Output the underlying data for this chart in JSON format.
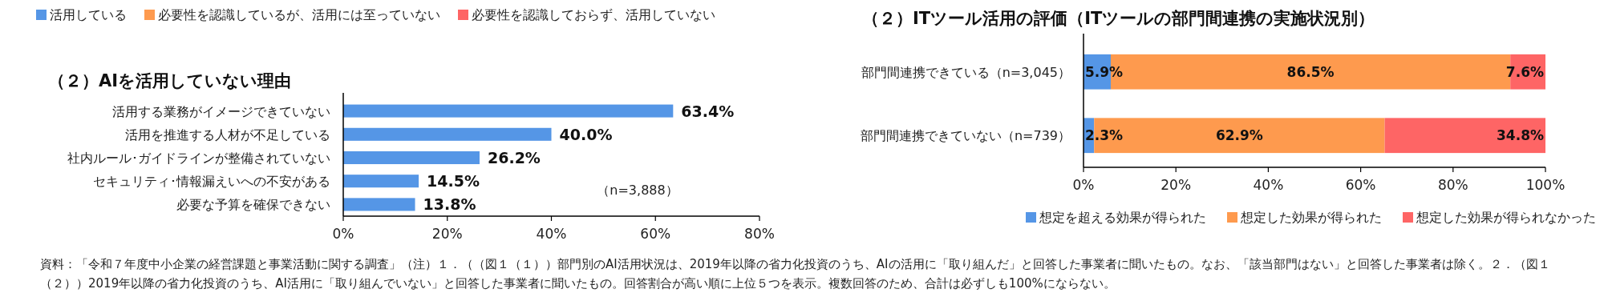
{
  "chart_data": [
    {
      "type": "other",
      "legend": "top",
      "series": [
        {
          "name": "活用している",
          "color": "#5596e6"
        },
        {
          "name": "必要性を認識しているが、活用には至っていない",
          "color": "#fe9a4e"
        },
        {
          "name": "必要性を認識しておらず、活用していない",
          "color": "#fe6565"
        }
      ],
      "annotations": [
        "資料：「令和７年度中小企業の経営課題と事業活動に関する調査」（注）１．（（図１（１））部門別のAI活用状況は、2019年以降の省力化投資のうち、AIの活用に「取り組んだ」と回答した事業者に聞いたもの。なお、「該当部門はない」と回答した事業者は除く。２．（図１（２））2019年以降の省力化投資のうち、AI活用に「取り組んでいない」と回答した事業者に聞いたもの。回答割合が高い順に上位５つを表示。複数回答のため、合計は必ずしも100%にならない。"
      ]
    },
    {
      "type": "bar",
      "orientation": "horizontal",
      "title": "（２）AIを活用していない理由",
      "categories": [
        "活用する業務がイメージできていない",
        "活用を推進する人材が不足している",
        "社内ルール･ガイドラインが整備されていない",
        "セキュリティ･情報漏えいへの不安がある",
        "必要な予算を確保できない"
      ],
      "values": [
        63.4,
        40.0,
        26.2,
        14.5,
        13.8
      ],
      "color": "#5596e6",
      "value_labels": [
        "63.4%",
        "40.0%",
        "26.2%",
        "14.5%",
        "13.8%"
      ],
      "xlim": [
        0,
        80
      ],
      "xticks": [
        {
          "value": 0,
          "label": "0%"
        },
        {
          "value": 20,
          "label": "20%"
        },
        {
          "value": 40,
          "label": "40%"
        },
        {
          "value": 60,
          "label": "60%"
        },
        {
          "value": 80,
          "label": "80%"
        }
      ],
      "annotations": [
        "（n=3,888）"
      ]
    },
    {
      "type": "bar",
      "orientation": "horizontal",
      "stacked": true,
      "legend": "bottom",
      "title": "（２）ITツール活用の評価（ITツールの部門間連携の実施状況別）",
      "categories": [
        "部門間連携できている（n=3,045）",
        "部門間連携できていない（n=739）"
      ],
      "series": [
        {
          "name": "想定を超える効果が得られた",
          "color": "#5596e6",
          "values": [
            5.9,
            2.3
          ],
          "value_labels": [
            "5.9%",
            "2.3%"
          ]
        },
        {
          "name": "想定した効果が得られた",
          "color": "#fe9a4e",
          "values": [
            86.5,
            62.9
          ],
          "value_labels": [
            "86.5%",
            "62.9%"
          ]
        },
        {
          "name": "想定した効果が得られなかった",
          "color": "#fe6565",
          "values": [
            7.6,
            34.8
          ],
          "value_labels": [
            "7.6%",
            "34.8%"
          ]
        }
      ],
      "xlim": [
        0,
        100
      ],
      "xticks": [
        {
          "value": 0,
          "label": "0%"
        },
        {
          "value": 20,
          "label": "20%"
        },
        {
          "value": 40,
          "label": "40%"
        },
        {
          "value": 60,
          "label": "60%"
        },
        {
          "value": 80,
          "label": "80%"
        },
        {
          "value": 100,
          "label": "100%"
        }
      ]
    }
  ]
}
